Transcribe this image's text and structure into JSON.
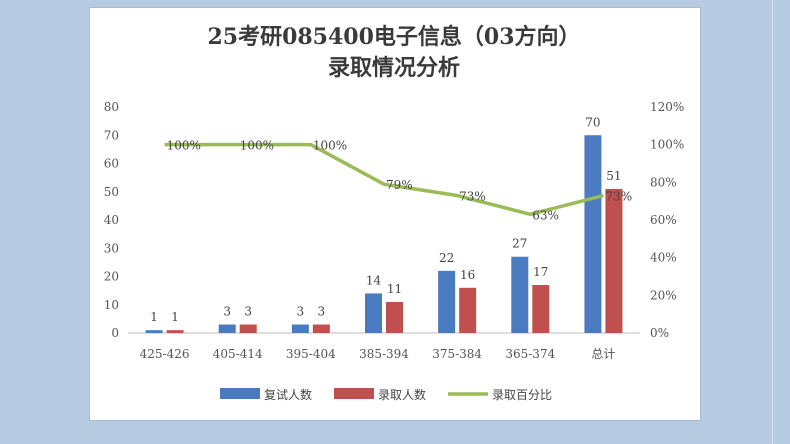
{
  "chart_data": {
    "type": "bar",
    "title_line1": "25考研085400电子信息（03方向）",
    "title_line2": "录取情况分析",
    "categories": [
      "425-426",
      "405-414",
      "395-404",
      "385-394",
      "375-384",
      "365-374",
      "总计"
    ],
    "series": [
      {
        "name": "复试人数",
        "type": "bar",
        "axis": "left",
        "color": "#4a7ac0",
        "values": [
          1,
          3,
          3,
          14,
          22,
          27,
          70
        ]
      },
      {
        "name": "录取人数",
        "type": "bar",
        "axis": "left",
        "color": "#c0504d",
        "values": [
          1,
          3,
          3,
          11,
          16,
          17,
          51
        ]
      },
      {
        "name": "录取百分比",
        "type": "line",
        "axis": "right",
        "color": "#9bbb59",
        "values": [
          100,
          100,
          100,
          79,
          73,
          63,
          73
        ],
        "labels": [
          "100%",
          "100%",
          "100%",
          "79%",
          "73%",
          "63%",
          "73%"
        ]
      }
    ],
    "y_left": {
      "min": 0,
      "max": 80,
      "ticks": [
        "0",
        "10",
        "20",
        "30",
        "40",
        "50",
        "60",
        "70",
        "80"
      ]
    },
    "y_right": {
      "min": 0,
      "max": 120,
      "ticks": [
        "0%",
        "20%",
        "40%",
        "60%",
        "80%",
        "100%",
        "120%"
      ]
    },
    "grid": false,
    "legend_position": "bottom"
  }
}
